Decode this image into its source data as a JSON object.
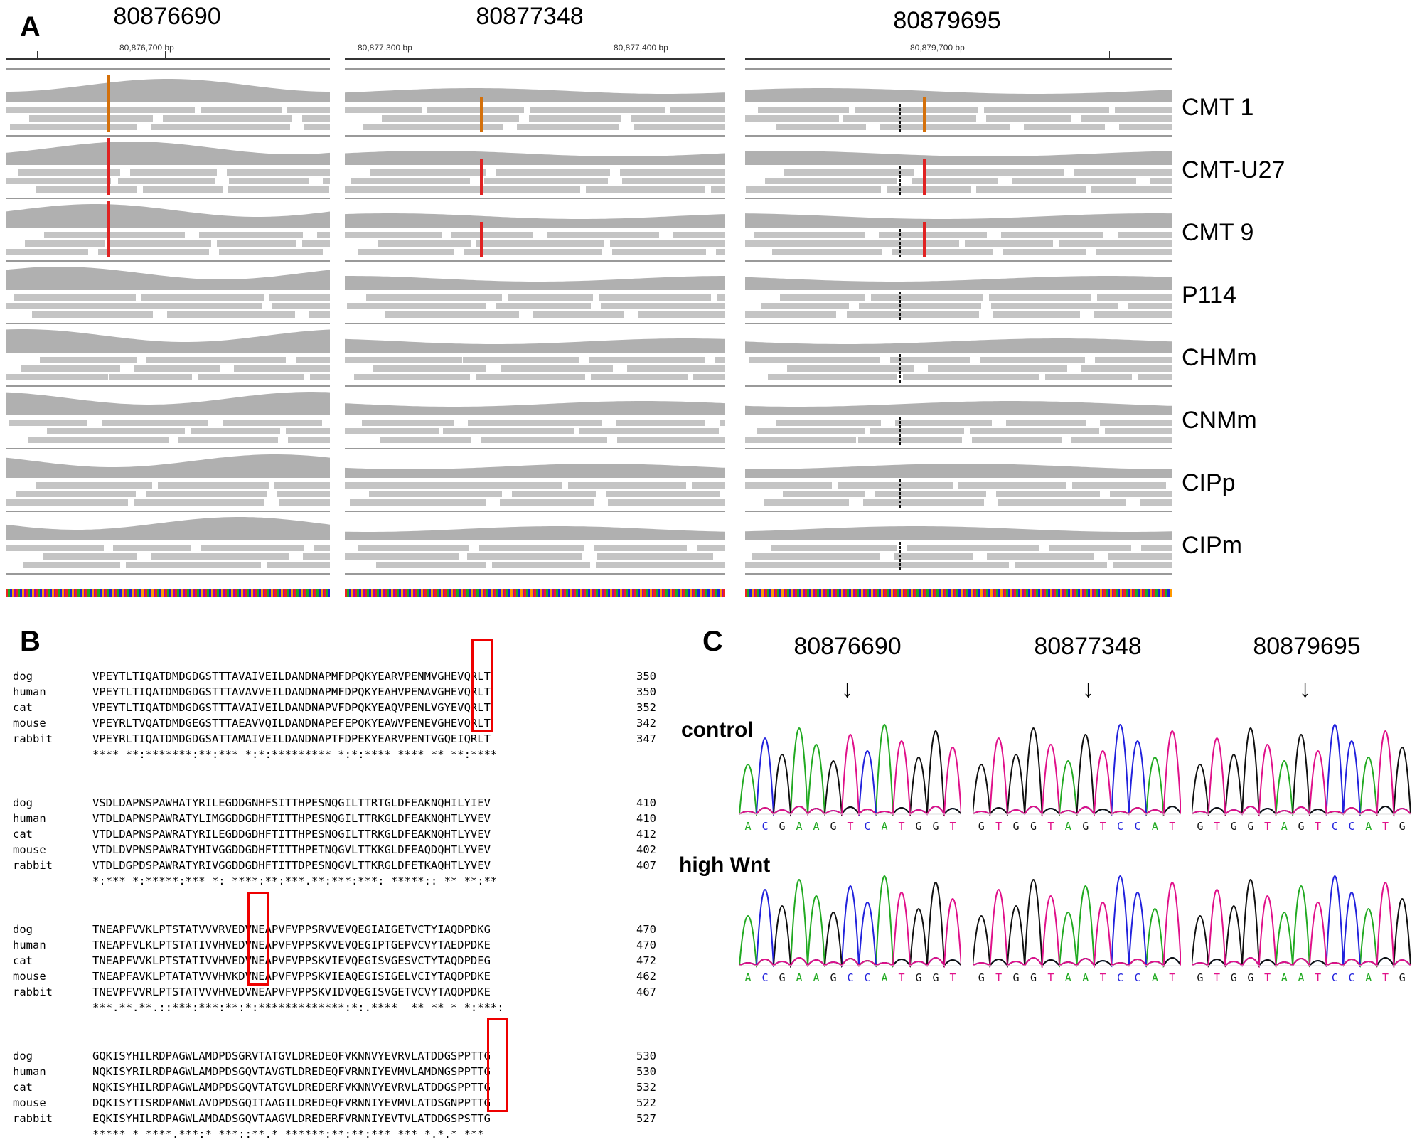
{
  "panels": {
    "a": "A",
    "b": "B",
    "c": "C"
  },
  "panelA": {
    "positions": [
      "80876690",
      "80877348",
      "80879695"
    ],
    "ruler_labels": [
      "80,876,700 bp",
      "80,877,300 bp",
      "80,877,400 bp",
      "80,879,700 bp"
    ],
    "samples": [
      "CMT 1",
      "CMT-U27",
      "CMT 9",
      "P114",
      "CHMm",
      "CNMm",
      "CIPp",
      "CIPm"
    ]
  },
  "panelB": {
    "blocks": [
      {
        "rows": [
          {
            "species": "dog",
            "seq": "VPEYTLTIQATDMDGDGSTTTAVAIVEILDANDNAPMFDPQKYEARVPENMVGHEVQRLT",
            "num": "350"
          },
          {
            "species": "human",
            "seq": "VPEYTLTIQATDMDGDGSTTTAVAVVEILDANDNAPMFDPQKYEAHVPENAVGHEVQRLT",
            "num": "350"
          },
          {
            "species": "cat",
            "seq": "VPEYTLTIQATDMDGDGSTTTAVAIVEILDANDNAPVFDPQKYEAQVPENLVGYEVQRLT",
            "num": "352"
          },
          {
            "species": "mouse",
            "seq": "VPEYRLTVQATDMDGEGSTTTAEAVVQILDANDNAPEFEPQKYEAWVPENEVGHEVQRLT",
            "num": "342"
          },
          {
            "species": "rabbit",
            "seq": "VPEYRLTIQATDMDGDGSATTAMAIVEILDANDNAPTFDPEKYEARVPENTVGQEIQRLT",
            "num": "347"
          }
        ],
        "consensus": "**** **:*******:**:*** *:*:********* *:*:**** **** ** **:****"
      },
      {
        "rows": [
          {
            "species": "dog",
            "seq": "VSDLDAPNSPAWHATYRILEGDDGNHFSITTHPESNQGILTTRTGLDFEAKNQHILYIEV",
            "num": "410"
          },
          {
            "species": "human",
            "seq": "VTDLDAPNSPAWRATYLIMGGDDGDHFTITTHPESNQGILTTRKGLDFEAKNQHTLYVEV",
            "num": "410"
          },
          {
            "species": "cat",
            "seq": "VTDLDAPNSPAWRATYRILEGDDGDHFTITTHPESNQGILTTRKGLDFEAKNQHTLYVEV",
            "num": "412"
          },
          {
            "species": "mouse",
            "seq": "VTDLDVPNSPAWRATYHIVGGDDGDHFTITTHPETNQGVLTTKKGLDFEAQDQHTLYVEV",
            "num": "402"
          },
          {
            "species": "rabbit",
            "seq": "VTDLDGPDSPAWRATYRIVGGDDGDHFTITTDPESNQGVLTTKRGLDFETKAQHTLYVEV",
            "num": "407"
          }
        ],
        "consensus": "*:*** *:*****:*** *: ****:**:***.**:***:***: *****:: ** **:**"
      },
      {
        "rows": [
          {
            "species": "dog",
            "seq": "TNEAPFVVKLPTSTATVVVRVEDVNEAPVFVPPSRVVEVQEGIAIGETVCTYIAQDPDKG",
            "num": "470"
          },
          {
            "species": "human",
            "seq": "TNEAPFVLKLPTSTATIVVHVEDVNEAPVFVPPSKVVEVQEGIPTGEPVCVYTAEDPDKE",
            "num": "470"
          },
          {
            "species": "cat",
            "seq": "TNEAPFVVKLPTSTATIVVHVEDVNEAPVFVPPSKVIEVQEGISVGESVCTYTAQDPDEG",
            "num": "472"
          },
          {
            "species": "mouse",
            "seq": "TNEAPFAVKLPTATATVVVHVKDVNEAPVFVPPSKVIEAQEGISIGELVCIYTAQDPDKE",
            "num": "462"
          },
          {
            "species": "rabbit",
            "seq": "TNEVPFVVRLPTSTATVVVHVEDVNEAPVFVPPSKVIDVQEGISVGETVCVYTAQDPDKE",
            "num": "467"
          }
        ],
        "consensus": "***.**.**.::***:***:**:*:*************:*:.****  ** ** * *:***:"
      },
      {
        "rows": [
          {
            "species": "dog",
            "seq": "GQKISYHILRDPAGWLAMDPDSGRVTATGVLDREDEQFVKNNVYEVRVLATDDGSPPTTG",
            "num": "530"
          },
          {
            "species": "human",
            "seq": "NQKISYRILRDPAGWLAMDPDSGQVTAVGTLDREDEQFVRNNIYEVMVLAMDNGSPPTTG",
            "num": "530"
          },
          {
            "species": "cat",
            "seq": "NQKISYHILRDPAGWLAMDPDSGQVTATGVLDREDERFVKNNVYEVRVLATDDGSPPTTG",
            "num": "532"
          },
          {
            "species": "mouse",
            "seq": "DQKISYTISRDPANWLAVDPDSGQITAAGILDREDEQFVRNNIYEVMVLATDSGNPPTTG",
            "num": "522"
          },
          {
            "species": "rabbit",
            "seq": "EQKISYHILRDPAGWLAMDADSGQVTAAGVLDREDERFVRNNIYEVTVLATDDGSPSTTG",
            "num": "527"
          }
        ],
        "consensus": "***** * ****.***:* ***::**.* ******:**:**:*** *** *.*.* ***"
      }
    ]
  },
  "panelC": {
    "positions": [
      "80876690",
      "80877348",
      "80879695"
    ],
    "arrow": "↓",
    "row_labels": [
      "control",
      "high Wnt"
    ],
    "control_seqs": [
      "ACGAAGTCATGGT",
      "GTGGTAGTCCAT",
      "GTGGTAGTCCATG"
    ],
    "highwnt_seqs": [
      "ACGAAGCCATGGT",
      "GTGGTAATCCAT",
      "GTGGTAATCCATG"
    ],
    "base_colors": {
      "A": "#22aa22",
      "C": "#2222dd",
      "G": "#111111",
      "T": "#e0118a"
    }
  }
}
